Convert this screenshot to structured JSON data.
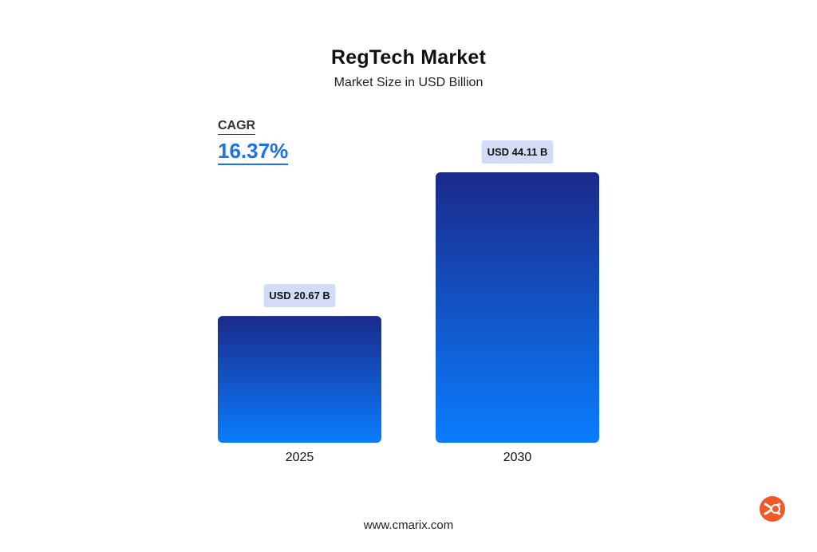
{
  "title": "RegTech Market",
  "subtitle": "Market Size in USD Billion",
  "cagr": {
    "label": "CAGR",
    "value": "16.37%"
  },
  "footer": "www.cmarix.com",
  "colors": {
    "bar_top": "#1a2a8a",
    "bar_bottom": "#0a7dff",
    "label_bg": "#d3dcf7",
    "cagr_accent": "#1a73e8",
    "logo": "#f05a28"
  },
  "chart_data": {
    "type": "bar",
    "categories": [
      "2025",
      "2030"
    ],
    "values": [
      20.67,
      44.11
    ],
    "value_labels": [
      "USD 20.67 B",
      "USD 44.11 B"
    ],
    "title": "RegTech Market",
    "subtitle": "Market Size in USD Billion",
    "xlabel": "",
    "ylabel": "",
    "ylim": [
      0,
      50
    ],
    "grid": false,
    "legend": "none"
  }
}
